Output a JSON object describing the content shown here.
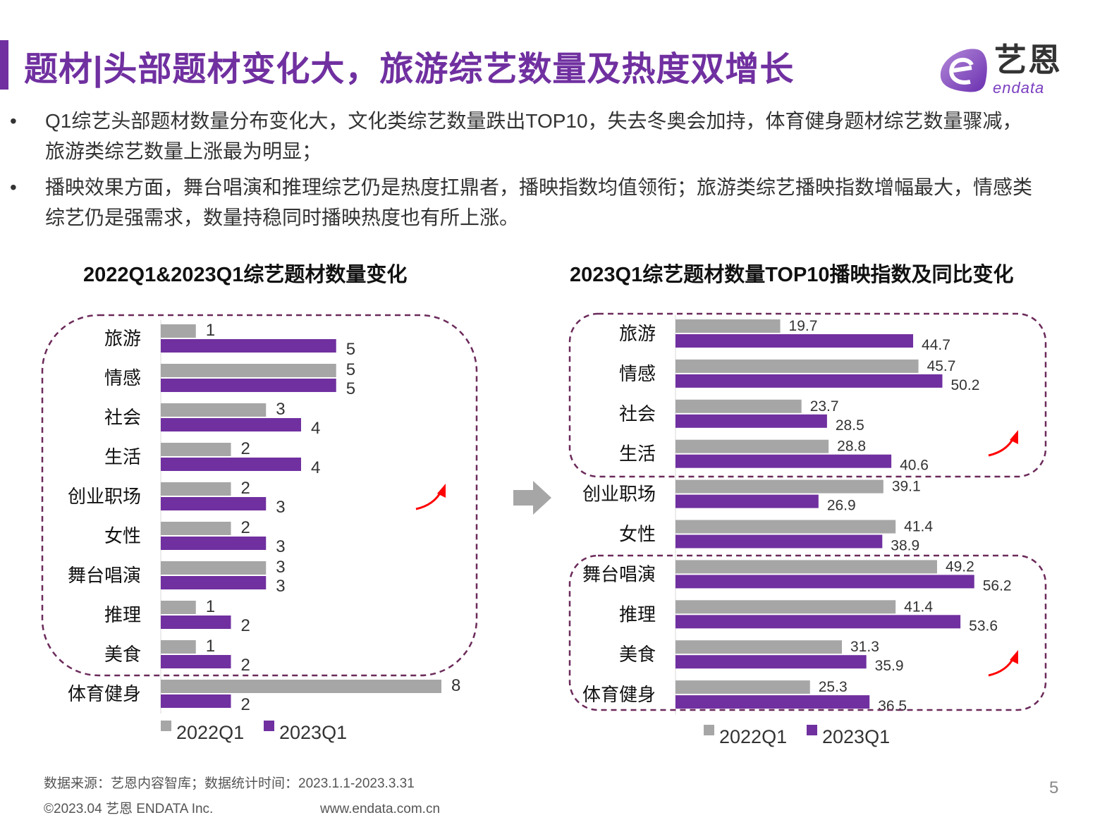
{
  "title": "题材|头部题材变化大，旅游综艺数量及热度双增长",
  "logo": {
    "cn": "艺恩",
    "en": "endata"
  },
  "bullets": [
    "Q1综艺头部题材数量分布变化大，文化类综艺数量跌出TOP10，失去冬奥会加持，体育健身题材综艺数量骤减，旅游类综艺数量上涨最为明显；",
    "播映效果方面，舞台唱演和推理综艺仍是热度扛鼎者，播映指数均值领衔；旅游类综艺播映指数增幅最大，情感类综艺仍是强需求，数量持稳同时播映热度也有所上涨。"
  ],
  "bullet_symbol": "•",
  "colors": {
    "accent": "#7030a0",
    "series_2022": "#a6a6a6",
    "series_2023": "#7030a0",
    "dashed_box": "#6b2a5a",
    "highlight_arrow": "#ff0000",
    "transition_arrow": "#a6a6a6"
  },
  "chart_data": [
    {
      "type": "bar",
      "orientation": "horizontal",
      "title": "2022Q1&2023Q1综艺题材数量变化",
      "categories": [
        "旅游",
        "情感",
        "社会",
        "生活",
        "创业职场",
        "女性",
        "舞台唱演",
        "推理",
        "美食",
        "体育健身"
      ],
      "series": [
        {
          "name": "2022Q1",
          "color": "#a6a6a6",
          "values": [
            1,
            5,
            3,
            2,
            2,
            2,
            3,
            1,
            1,
            8
          ]
        },
        {
          "name": "2023Q1",
          "color": "#7030a0",
          "values": [
            5,
            5,
            4,
            4,
            3,
            3,
            3,
            2,
            2,
            2
          ]
        }
      ],
      "xlim": [
        0,
        8
      ],
      "grid": false,
      "legend": "bottom",
      "highlight_groups": [
        [
          "旅游",
          "情感",
          "社会",
          "生活",
          "创业职场",
          "女性",
          "舞台唱演",
          "推理",
          "美食"
        ]
      ]
    },
    {
      "type": "bar",
      "orientation": "horizontal",
      "title": "2023Q1综艺题材数量TOP10播映指数及同比变化",
      "categories": [
        "旅游",
        "情感",
        "社会",
        "生活",
        "创业职场",
        "女性",
        "舞台唱演",
        "推理",
        "美食",
        "体育健身"
      ],
      "series": [
        {
          "name": "2022Q1",
          "color": "#a6a6a6",
          "values": [
            19.7,
            45.7,
            23.7,
            28.8,
            39.1,
            41.4,
            49.2,
            41.4,
            31.3,
            25.3
          ]
        },
        {
          "name": "2023Q1",
          "color": "#7030a0",
          "values": [
            44.7,
            50.2,
            28.5,
            40.6,
            26.9,
            38.9,
            56.2,
            53.6,
            35.9,
            36.5
          ]
        }
      ],
      "xlim": [
        0,
        60
      ],
      "grid": false,
      "legend": "bottom",
      "highlight_groups": [
        [
          "旅游",
          "情感",
          "社会",
          "生活"
        ],
        [
          "舞台唱演",
          "推理",
          "美食",
          "体育健身"
        ]
      ]
    }
  ],
  "footer": {
    "source": "数据来源：艺恩内容智库；数据统计时间：2023.1.1-2023.3.31",
    "copyright": "©2023.04 艺恩 ENDATA Inc.",
    "website": "www.endata.com.cn",
    "page": "5"
  }
}
